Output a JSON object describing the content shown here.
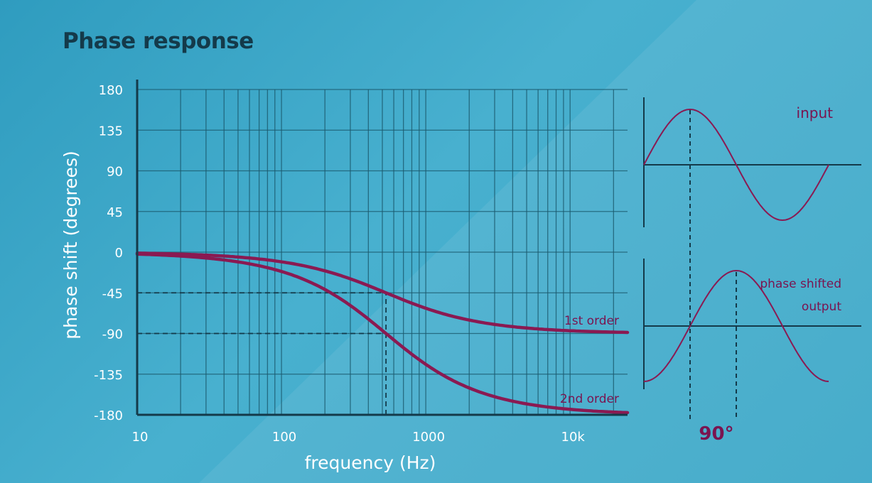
{
  "title": "Phase response",
  "colors": {
    "background": "#3aa6c7",
    "grid": "#1c5a6e",
    "axis": "#143a4a",
    "curve": "#8a1a52",
    "text": "#ffffff",
    "accent_text": "#7a1450"
  },
  "chart_data": {
    "type": "line",
    "xlabel": "frequency (Hz)",
    "ylabel": "phase shift (degrees)",
    "x_scale": "log",
    "xlim": [
      10,
      25000
    ],
    "ylim": [
      -180,
      180
    ],
    "x_ticks": [
      10,
      100,
      1000,
      10000
    ],
    "x_tick_labels": [
      "10",
      "100",
      "1000",
      "10k"
    ],
    "y_ticks": [
      180,
      135,
      90,
      45,
      0,
      -45,
      -90,
      -135,
      -180
    ],
    "y_tick_labels": [
      "180",
      "135",
      "90",
      "45",
      "0",
      "-45",
      "-90",
      "-135",
      "-180"
    ],
    "grid": true,
    "cutoff_frequency": 530,
    "series": [
      {
        "name": "1st order",
        "x": [
          10,
          20,
          50,
          100,
          200,
          530,
          1000,
          2000,
          5000,
          10000,
          25000
        ],
        "y": [
          -1,
          -2,
          -5,
          -11,
          -21,
          -45,
          -62,
          -75,
          -84,
          -87,
          -89
        ]
      },
      {
        "name": "2nd order",
        "x": [
          10,
          20,
          50,
          100,
          200,
          530,
          1000,
          2000,
          5000,
          10000,
          25000
        ],
        "y": [
          -2,
          -4,
          -11,
          -23,
          -45,
          -90,
          -124,
          -150,
          -167,
          -173,
          -178
        ]
      }
    ],
    "reference_lines": [
      {
        "y": -45,
        "x_end": 530
      },
      {
        "y": -90,
        "x_end": 530
      },
      {
        "x": 530,
        "y_from": -180,
        "y_to": -45
      }
    ]
  },
  "waveform_panel": {
    "input_label": "input",
    "output_label_line1": "phase shifted",
    "output_label_line2": "output",
    "phase_label": "90°"
  }
}
